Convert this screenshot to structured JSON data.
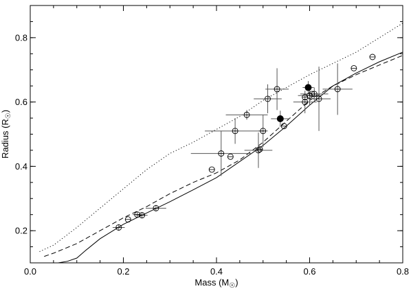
{
  "chart_data": {
    "type": "scatter",
    "xlabel": "Mass (M",
    "xlabel_suffix": ")",
    "ylabel": "Radius (R",
    "ylabel_suffix": ")",
    "xlim": [
      0.0,
      0.8
    ],
    "ylim": [
      0.1,
      0.9
    ],
    "xticks": [
      {
        "value": 0.0,
        "label": "0.0"
      },
      {
        "value": 0.2,
        "label": "0.2"
      },
      {
        "value": 0.4,
        "label": "0.4"
      },
      {
        "value": 0.6,
        "label": "0.6"
      },
      {
        "value": 0.8,
        "label": "0.8"
      }
    ],
    "yticks": [
      {
        "value": 0.2,
        "label": "0.2"
      },
      {
        "value": 0.4,
        "label": "0.4"
      },
      {
        "value": 0.6,
        "label": "0.6"
      },
      {
        "value": 0.8,
        "label": "0.8"
      }
    ],
    "grid": false,
    "legend": "none",
    "series": [
      {
        "marker": "open-circle-cross",
        "points": [
          {
            "x": 0.19,
            "y": 0.21,
            "xerr": 0.013,
            "yerr": 0.01
          },
          {
            "x": 0.21,
            "y": 0.235,
            "xerr": 0.0,
            "yerr": 0.0
          },
          {
            "x": 0.23,
            "y": 0.25,
            "xerr": 0.01,
            "yerr": 0.01
          },
          {
            "x": 0.24,
            "y": 0.248,
            "xerr": 0.012,
            "yerr": 0.008
          },
          {
            "x": 0.27,
            "y": 0.27,
            "xerr": 0.022,
            "yerr": 0.01
          },
          {
            "x": 0.39,
            "y": 0.39,
            "xerr": 0.0,
            "yerr": 0.0
          },
          {
            "x": 0.41,
            "y": 0.44,
            "xerr": 0.065,
            "yerr": 0.07
          },
          {
            "x": 0.43,
            "y": 0.43,
            "xerr": 0.0,
            "yerr": 0.0
          },
          {
            "x": 0.44,
            "y": 0.51,
            "xerr": 0.065,
            "yerr": 0.04
          },
          {
            "x": 0.465,
            "y": 0.56,
            "xerr": 0.045,
            "yerr": 0.015
          },
          {
            "x": 0.49,
            "y": 0.45,
            "xerr": 0.03,
            "yerr": 0.055
          },
          {
            "x": 0.493,
            "y": 0.453,
            "xerr": 0.0,
            "yerr": 0.0
          },
          {
            "x": 0.5,
            "y": 0.51,
            "xerr": 0.01,
            "yerr": 0.05
          },
          {
            "x": 0.51,
            "y": 0.61,
            "xerr": 0.03,
            "yerr": 0.045
          },
          {
            "x": 0.53,
            "y": 0.64,
            "xerr": 0.025,
            "yerr": 0.065
          },
          {
            "x": 0.545,
            "y": 0.525,
            "xerr": 0.0,
            "yerr": 0.0
          },
          {
            "x": 0.59,
            "y": 0.6,
            "xerr": 0.025,
            "yerr": 0.035
          },
          {
            "x": 0.59,
            "y": 0.615,
            "xerr": 0.0,
            "yerr": 0.0
          },
          {
            "x": 0.6,
            "y": 0.62,
            "xerr": 0.025,
            "yerr": 0.03
          },
          {
            "x": 0.605,
            "y": 0.625,
            "xerr": 0.0,
            "yerr": 0.0
          },
          {
            "x": 0.61,
            "y": 0.625,
            "xerr": 0.03,
            "yerr": 0.02
          },
          {
            "x": 0.62,
            "y": 0.61,
            "xerr": 0.025,
            "yerr": 0.1
          },
          {
            "x": 0.66,
            "y": 0.64,
            "xerr": 0.032,
            "yerr": 0.08
          },
          {
            "x": 0.695,
            "y": 0.705,
            "xerr": 0.0,
            "yerr": 0.0
          },
          {
            "x": 0.735,
            "y": 0.74,
            "xerr": 0.0,
            "yerr": 0.0
          }
        ]
      },
      {
        "marker": "filled-circle",
        "points": [
          {
            "x": 0.537,
            "y": 0.548,
            "xerr": 0.02,
            "yerr": 0.025
          },
          {
            "x": 0.597,
            "y": 0.645,
            "xerr": 0.012,
            "yerr": 0.02
          }
        ]
      }
    ],
    "curves": [
      {
        "style": "solid",
        "x": [
          0.06,
          0.08,
          0.1,
          0.12,
          0.15,
          0.2,
          0.25,
          0.3,
          0.35,
          0.4,
          0.45,
          0.5,
          0.55,
          0.6,
          0.65,
          0.7,
          0.75,
          0.8
        ],
        "y": [
          0.1,
          0.105,
          0.115,
          0.14,
          0.175,
          0.22,
          0.255,
          0.29,
          0.327,
          0.365,
          0.415,
          0.465,
          0.525,
          0.59,
          0.65,
          0.69,
          0.725,
          0.755
        ]
      },
      {
        "style": "dashed",
        "x": [
          0.03,
          0.05,
          0.1,
          0.15,
          0.2,
          0.25,
          0.3,
          0.35,
          0.4,
          0.45,
          0.5,
          0.55,
          0.6,
          0.65,
          0.7,
          0.75,
          0.8
        ],
        "y": [
          0.12,
          0.13,
          0.16,
          0.2,
          0.24,
          0.275,
          0.315,
          0.35,
          0.38,
          0.42,
          0.475,
          0.54,
          0.605,
          0.65,
          0.685,
          0.715,
          0.745
        ]
      },
      {
        "style": "dotted",
        "x": [
          0.02,
          0.05,
          0.1,
          0.15,
          0.2,
          0.25,
          0.3,
          0.35,
          0.4,
          0.45,
          0.5,
          0.55,
          0.6,
          0.65,
          0.7,
          0.75,
          0.8
        ],
        "y": [
          0.135,
          0.155,
          0.21,
          0.27,
          0.33,
          0.39,
          0.44,
          0.475,
          0.515,
          0.555,
          0.605,
          0.645,
          0.685,
          0.72,
          0.755,
          0.8,
          0.845
        ]
      }
    ]
  }
}
